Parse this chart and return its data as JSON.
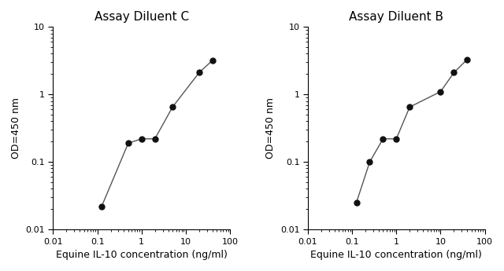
{
  "plot1": {
    "title": "Assay Diluent C",
    "x": [
      0.125,
      0.5,
      1.0,
      2.0,
      5.0,
      20.0,
      40.0
    ],
    "y": [
      0.022,
      0.19,
      0.22,
      0.22,
      0.65,
      2.1,
      3.2
    ],
    "xlabel": "Equine IL-10 concentration (ng/ml)",
    "ylabel": "OD=450 nm"
  },
  "plot2": {
    "title": "Assay Diluent B",
    "x": [
      0.125,
      0.25,
      0.5,
      1.0,
      2.0,
      10.0,
      20.0,
      40.0
    ],
    "y": [
      0.025,
      0.1,
      0.22,
      0.22,
      0.65,
      1.1,
      2.1,
      3.3
    ],
    "xlabel": "Equine IL-10 concentration (ng/ml)",
    "ylabel": "OD=450 nm"
  },
  "xlim": [
    0.01,
    100
  ],
  "ylim": [
    0.01,
    10
  ],
  "xticks": [
    0.01,
    0.1,
    1,
    10,
    100
  ],
  "yticks": [
    0.01,
    0.1,
    1,
    10
  ],
  "xtick_labels": [
    "0.01",
    "0.1",
    "1",
    "10",
    "100"
  ],
  "ytick_labels": [
    "0.01",
    "0.1",
    "1",
    "10"
  ],
  "line_color": "#555555",
  "marker_color": "#111111",
  "marker": "o",
  "markersize": 5,
  "linewidth": 1.0,
  "title_fontsize": 11,
  "label_fontsize": 9,
  "tick_fontsize": 8,
  "bg_color": "#ffffff"
}
